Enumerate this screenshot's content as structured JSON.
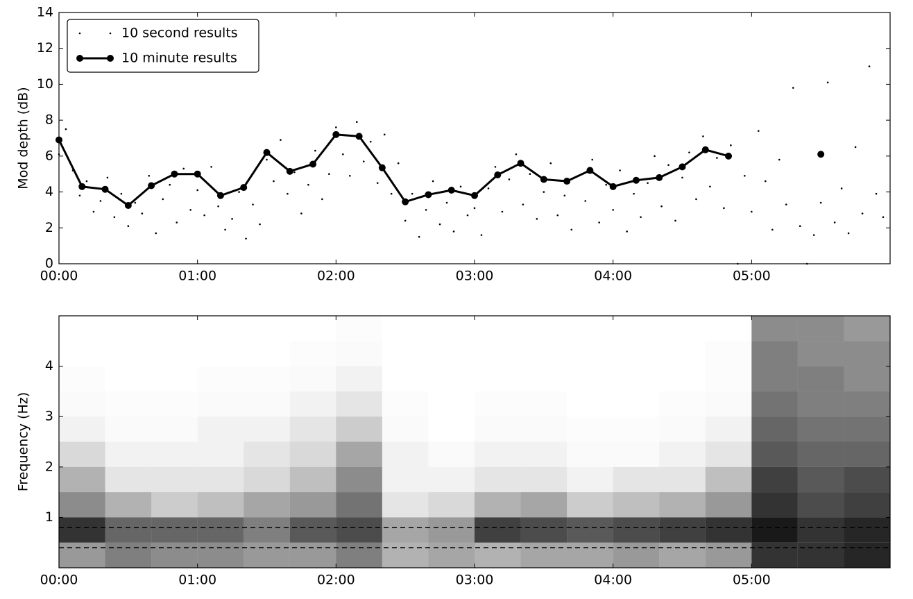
{
  "chart_data": [
    {
      "type": "scatter-line",
      "y_label": "Mod depth (dB)",
      "xlim": [
        0,
        360
      ],
      "ylim": [
        0,
        14
      ],
      "xticks": [
        {
          "value": 0,
          "label": "00:00"
        },
        {
          "value": 60,
          "label": "01:00"
        },
        {
          "value": 120,
          "label": "02:00"
        },
        {
          "value": 180,
          "label": "03:00"
        },
        {
          "value": 240,
          "label": "04:00"
        },
        {
          "value": 300,
          "label": "05:00"
        }
      ],
      "yticks": [
        0,
        2,
        4,
        6,
        8,
        10,
        12,
        14
      ],
      "legend": "upper left",
      "series": [
        {
          "name": "10 second results",
          "color": "#000000",
          "style": "dots",
          "x": [
            0,
            3,
            6,
            9,
            12,
            15,
            18,
            21,
            24,
            27,
            30,
            33,
            36,
            39,
            42,
            45,
            48,
            51,
            54,
            57,
            60,
            63,
            66,
            69,
            72,
            75,
            78,
            81,
            84,
            87,
            90,
            93,
            96,
            99,
            102,
            105,
            108,
            111,
            114,
            117,
            120,
            123,
            126,
            129,
            132,
            135,
            138,
            141,
            144,
            147,
            150,
            153,
            156,
            159,
            162,
            165,
            168,
            171,
            174,
            177,
            180,
            183,
            186,
            189,
            192,
            195,
            198,
            201,
            204,
            207,
            210,
            213,
            216,
            219,
            222,
            225,
            228,
            231,
            234,
            237,
            240,
            243,
            246,
            249,
            252,
            255,
            258,
            261,
            264,
            267,
            270,
            273,
            276,
            279,
            282,
            285,
            288,
            291,
            294,
            297,
            300,
            303,
            306,
            309,
            312,
            315,
            318,
            321,
            324,
            327,
            330,
            333,
            336,
            339,
            342,
            345,
            348,
            351,
            354,
            357
          ],
          "values": [
            6.1,
            7.5,
            5.2,
            3.8,
            4.6,
            2.9,
            3.5,
            4.8,
            2.6,
            3.9,
            2.1,
            3.4,
            2.8,
            4.9,
            1.7,
            3.6,
            4.4,
            2.3,
            5.3,
            3.0,
            4.1,
            2.7,
            5.4,
            3.2,
            1.9,
            2.5,
            4.0,
            1.4,
            3.3,
            2.2,
            5.8,
            4.6,
            6.9,
            3.9,
            5.1,
            2.8,
            4.4,
            6.3,
            3.6,
            5.0,
            7.6,
            6.1,
            4.9,
            7.9,
            5.7,
            6.8,
            4.5,
            7.2,
            3.9,
            5.6,
            2.4,
            3.9,
            1.5,
            3.0,
            4.6,
            2.2,
            3.4,
            1.8,
            4.3,
            2.7,
            3.1,
            1.6,
            4.2,
            5.4,
            2.9,
            4.7,
            6.1,
            3.3,
            5.0,
            2.5,
            4.0,
            5.6,
            2.7,
            3.8,
            1.9,
            4.9,
            3.5,
            5.8,
            2.3,
            4.4,
            3.0,
            5.2,
            1.8,
            3.9,
            2.6,
            4.5,
            6.0,
            3.2,
            5.5,
            2.4,
            4.8,
            6.2,
            3.6,
            7.1,
            4.3,
            5.9,
            3.1,
            6.6,
            0,
            4.9,
            2.9,
            7.4,
            4.6,
            1.9,
            5.8,
            3.3,
            9.8,
            2.1,
            0,
            1.6,
            3.4,
            10.1,
            2.3,
            4.2,
            1.7,
            6.5,
            2.8,
            11.0,
            3.9,
            2.6
          ]
        },
        {
          "name": "10 minute results",
          "color": "#000000",
          "style": "line-marker",
          "x": [
            0,
            10,
            20,
            30,
            40,
            50,
            60,
            70,
            80,
            90,
            100,
            110,
            120,
            130,
            140,
            150,
            160,
            170,
            180,
            190,
            200,
            210,
            220,
            230,
            240,
            250,
            260,
            270,
            280,
            290,
            300,
            310,
            320,
            330
          ],
          "values": [
            6.9,
            4.3,
            4.15,
            3.25,
            4.35,
            5.0,
            5.0,
            3.8,
            4.25,
            6.2,
            5.15,
            5.55,
            7.2,
            7.1,
            5.35,
            3.45,
            3.85,
            4.1,
            3.8,
            4.95,
            5.6,
            4.7,
            4.6,
            5.2,
            4.3,
            4.65,
            4.8,
            5.4,
            6.35,
            6.0,
            null,
            null,
            null,
            6.1
          ]
        }
      ]
    },
    {
      "type": "heatmap",
      "y_label": "Frequency (Hz)",
      "xlim": [
        0,
        360
      ],
      "ylim": [
        0,
        5
      ],
      "xticks": [
        {
          "value": 0,
          "label": "00:00"
        },
        {
          "value": 60,
          "label": "01:00"
        },
        {
          "value": 120,
          "label": "02:00"
        },
        {
          "value": 180,
          "label": "03:00"
        },
        {
          "value": 240,
          "label": "04:00"
        },
        {
          "value": 300,
          "label": "05:00"
        }
      ],
      "yticks": [
        1,
        2,
        3,
        4
      ],
      "color": "#000000",
      "hlines": [
        0.4,
        0.8
      ],
      "x_bins": [
        0,
        20,
        40,
        60,
        80,
        100,
        120,
        140,
        160,
        180,
        200,
        220,
        240,
        260,
        280,
        300,
        320,
        340,
        360
      ],
      "y_bins": [
        0,
        0.5,
        1,
        1.5,
        2,
        2.5,
        3,
        3.5,
        4,
        4.5,
        5
      ],
      "z": [
        [
          0.4,
          0.5,
          0.45,
          0.45,
          0.4,
          0.4,
          0.5,
          0.3,
          0.35,
          0.3,
          0.35,
          0.35,
          0.4,
          0.35,
          0.4,
          0.8,
          0.8,
          0.85
        ],
        [
          0.8,
          0.6,
          0.6,
          0.6,
          0.5,
          0.65,
          0.7,
          0.35,
          0.4,
          0.75,
          0.7,
          0.65,
          0.7,
          0.75,
          0.8,
          0.9,
          0.8,
          0.85
        ],
        [
          0.45,
          0.3,
          0.2,
          0.25,
          0.35,
          0.4,
          0.55,
          0.1,
          0.15,
          0.3,
          0.35,
          0.2,
          0.25,
          0.3,
          0.4,
          0.8,
          0.7,
          0.75
        ],
        [
          0.3,
          0.1,
          0.1,
          0.1,
          0.15,
          0.25,
          0.45,
          0.05,
          0.05,
          0.1,
          0.1,
          0.05,
          0.1,
          0.1,
          0.25,
          0.75,
          0.65,
          0.7
        ],
        [
          0.15,
          0.05,
          0.05,
          0.05,
          0.1,
          0.15,
          0.35,
          0.05,
          0.02,
          0.05,
          0.05,
          0.02,
          0.02,
          0.05,
          0.1,
          0.65,
          0.6,
          0.6
        ],
        [
          0.05,
          0.02,
          0.02,
          0.05,
          0.05,
          0.1,
          0.2,
          0.02,
          0,
          0.02,
          0.02,
          0.01,
          0.01,
          0.02,
          0.05,
          0.6,
          0.55,
          0.55
        ],
        [
          0.02,
          0.01,
          0.01,
          0.02,
          0.02,
          0.05,
          0.1,
          0.01,
          0,
          0.01,
          0.01,
          0,
          0,
          0.01,
          0.02,
          0.55,
          0.5,
          0.5
        ],
        [
          0.01,
          0,
          0,
          0.01,
          0.01,
          0.02,
          0.05,
          0,
          0,
          0,
          0,
          0,
          0,
          0,
          0.01,
          0.5,
          0.5,
          0.45
        ],
        [
          0,
          0,
          0,
          0,
          0,
          0.01,
          0.02,
          0,
          0,
          0,
          0,
          0,
          0,
          0,
          0.01,
          0.5,
          0.45,
          0.45
        ],
        [
          0,
          0,
          0,
          0,
          0,
          0,
          0.01,
          0,
          0,
          0,
          0,
          0,
          0,
          0,
          0,
          0.45,
          0.45,
          0.4
        ]
      ]
    }
  ]
}
